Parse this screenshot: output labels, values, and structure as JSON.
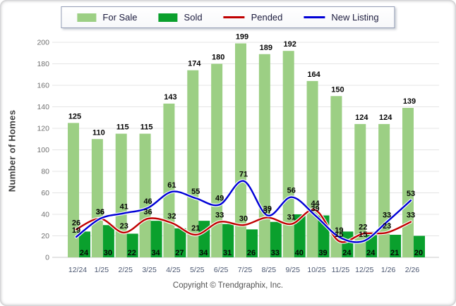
{
  "page": {
    "copyright": "Copyright © Trendgraphix, Inc."
  },
  "colors": {
    "for_sale": "#9CCF84",
    "sold": "#0AA02D",
    "pended": "#C00000",
    "new_listing": "#0000D6",
    "grid": "#e4e4e4",
    "axis": "#c8c8c8",
    "ytick_text": "#707070",
    "xtick_text": "#4a5670",
    "value_label": "#060606"
  },
  "legend": {
    "items": [
      {
        "label": "For Sale",
        "swatch": "rect",
        "color": "#9CCF84"
      },
      {
        "label": "Sold",
        "swatch": "rect",
        "color": "#0AA02D"
      },
      {
        "label": "Pended",
        "swatch": "line",
        "color": "#C00000"
      },
      {
        "label": "New Listing",
        "swatch": "line",
        "color": "#0000D6"
      }
    ]
  },
  "chart_data": {
    "type": "bar",
    "subtype": "grouped-bars-with-lines",
    "title": "",
    "xlabel": "",
    "ylabel": "Number of Homes",
    "ylim": [
      0,
      200
    ],
    "ytick_step": 20,
    "grid": true,
    "legend_position": "top",
    "categories": [
      "12/24",
      "1/25",
      "2/25",
      "3/25",
      "4/25",
      "5/25",
      "6/25",
      "7/25",
      "8/25",
      "9/25",
      "10/25",
      "11/25",
      "12/25",
      "1/26",
      "2/26"
    ],
    "series": [
      {
        "name": "For Sale",
        "type": "bar",
        "color": "#9CCF84",
        "values": [
          125,
          110,
          115,
          115,
          143,
          174,
          180,
          199,
          189,
          192,
          164,
          150,
          124,
          124,
          139
        ]
      },
      {
        "name": "Sold",
        "type": "bar",
        "color": "#0AA02D",
        "values": [
          24,
          30,
          22,
          34,
          27,
          34,
          31,
          26,
          33,
          40,
          39,
          24,
          24,
          21,
          20
        ]
      },
      {
        "name": "Pended",
        "type": "line",
        "color": "#C00000",
        "values": [
          26,
          36,
          23,
          36,
          32,
          21,
          33,
          30,
          37,
          31,
          44,
          15,
          22,
          23,
          33
        ]
      },
      {
        "name": "New Listing",
        "type": "line",
        "color": "#0000D6",
        "values": [
          19,
          36,
          41,
          46,
          61,
          55,
          49,
          71,
          39,
          56,
          39,
          19,
          15,
          33,
          53
        ]
      }
    ]
  }
}
